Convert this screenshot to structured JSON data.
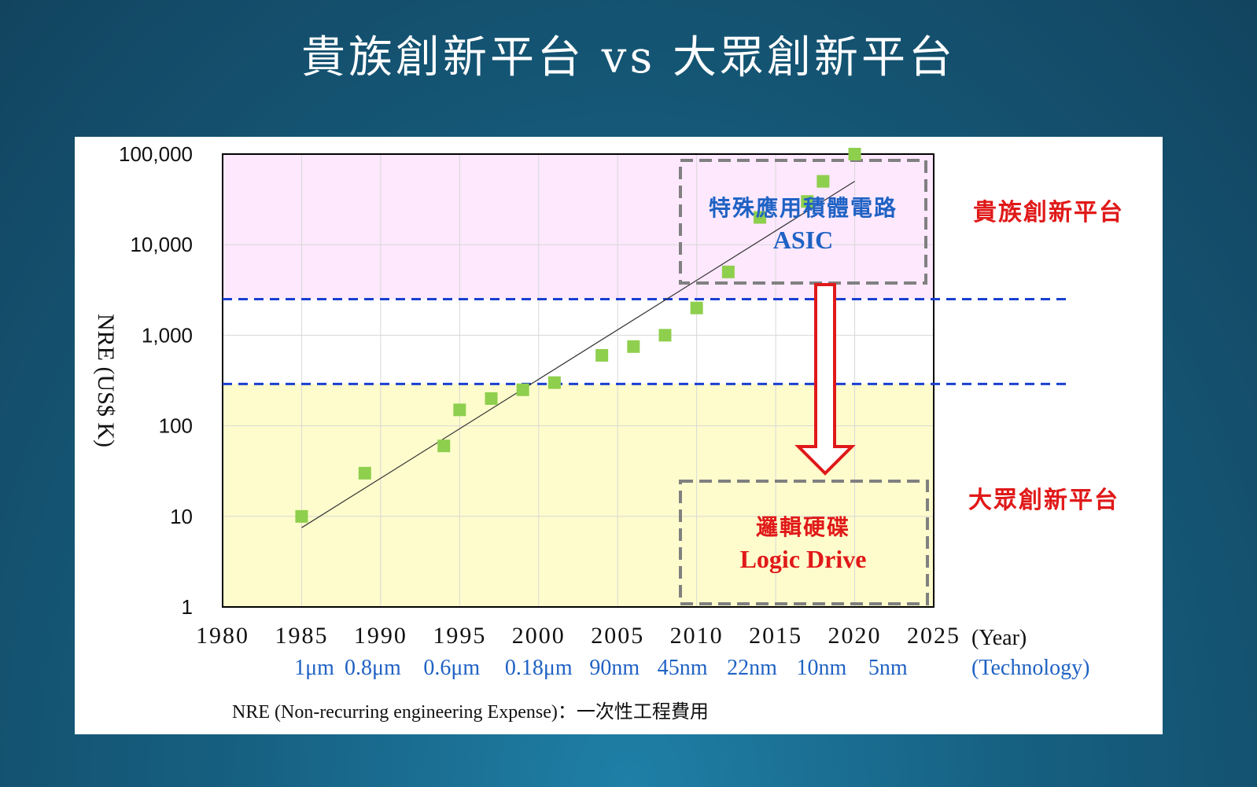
{
  "slide": {
    "title": "貴族創新平台 vs 大眾創新平台",
    "footnote": "NRE (Non-recurring engineering Expense)：一次性工程費用"
  },
  "colors": {
    "upper_zone": "#fde8fd",
    "lower_zone": "#fefccc",
    "marker": "#8ecf4e",
    "threshold_line": "#1a3fd1",
    "red": "#e01919",
    "blue": "#1f62c4",
    "box_border": "#808080"
  },
  "chart_data": {
    "type": "scatter",
    "ylabel": "NRE (US$ K)",
    "y_scale": "log",
    "ylim": [
      1,
      100000
    ],
    "xlim": [
      1980,
      2025
    ],
    "x_ticks": [
      1980,
      1985,
      1990,
      1995,
      2000,
      2005,
      2010,
      2015,
      2020,
      2025
    ],
    "y_tick_labels": [
      "1",
      "10",
      "100",
      "1,000",
      "10,000",
      "100,000"
    ],
    "x_unit_label": "(Year)",
    "tech_unit_label": "(Technology)",
    "technology_labels": [
      "1μm",
      "0.8μm",
      "0.6μm",
      "0.18μm",
      "90nm",
      "45nm",
      "22nm",
      "10nm",
      "5nm"
    ],
    "grid": true,
    "series": [
      {
        "points": [
          [
            1985,
            10
          ],
          [
            1989,
            30
          ],
          [
            1994,
            60
          ],
          [
            1995,
            150
          ],
          [
            1997,
            200
          ],
          [
            1999,
            250
          ],
          [
            2001,
            300
          ],
          [
            2004,
            600
          ],
          [
            2006,
            750
          ],
          [
            2008,
            1000
          ],
          [
            2010,
            2000
          ],
          [
            2012,
            5000
          ],
          [
            2014,
            20000
          ],
          [
            2017,
            30000
          ],
          [
            2018,
            50000
          ],
          [
            2020,
            100000
          ]
        ]
      }
    ],
    "trendline": [
      [
        1985,
        7.5
      ],
      [
        2020,
        50000
      ]
    ],
    "thresholds": [
      2500,
      290
    ],
    "zones": {
      "upper": {
        "label": "貴族創新平台"
      },
      "lower": {
        "label": "大眾創新平台"
      }
    },
    "annotations": {
      "asic_line1": "特殊應用積體電路",
      "asic_line2": "ASIC",
      "logic_line1": "邏輯硬碟",
      "logic_line2": "Logic Drive"
    }
  }
}
